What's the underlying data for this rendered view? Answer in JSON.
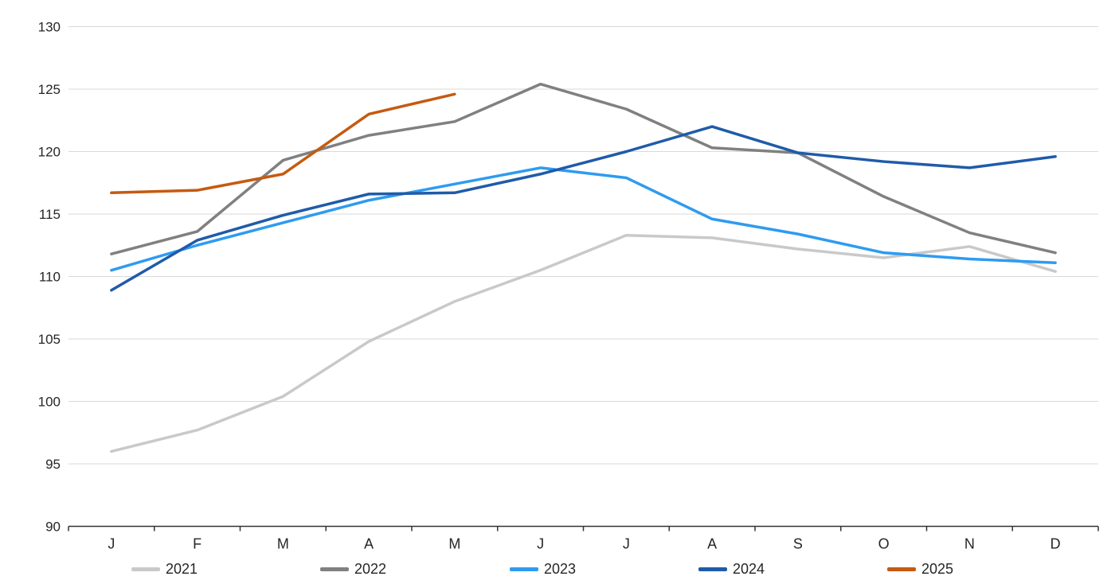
{
  "colors": {
    "background": "#ffffff",
    "gridline": "#d9d9d9",
    "axis": "#333333",
    "text": "#262626"
  },
  "chart_data": {
    "type": "line",
    "title": "",
    "xlabel": "",
    "ylabel": "",
    "categories": [
      "J",
      "F",
      "M",
      "A",
      "M",
      "J",
      "J",
      "A",
      "S",
      "O",
      "N",
      "D"
    ],
    "y_axis": {
      "min": 90,
      "max": 130,
      "tick_step": 5,
      "tick_labels": [
        "90",
        "95",
        "100",
        "105",
        "110",
        "115",
        "120",
        "125",
        "130"
      ]
    },
    "grid": true,
    "legend_position": "bottom",
    "series": [
      {
        "name": "2021",
        "color": "#c9c9c9",
        "values": [
          96.0,
          97.7,
          100.4,
          104.8,
          108.0,
          110.5,
          113.3,
          113.1,
          112.2,
          111.5,
          112.4,
          110.4
        ]
      },
      {
        "name": "2022",
        "color": "#808080",
        "values": [
          111.8,
          113.6,
          119.3,
          121.3,
          122.4,
          125.4,
          123.4,
          120.3,
          119.9,
          116.4,
          113.5,
          111.9
        ]
      },
      {
        "name": "2023",
        "color": "#2e9bf0",
        "values": [
          110.5,
          112.5,
          114.3,
          116.1,
          117.4,
          118.7,
          117.9,
          114.6,
          113.4,
          111.9,
          111.4,
          111.1
        ]
      },
      {
        "name": "2024",
        "color": "#1f5ba9",
        "values": [
          108.9,
          112.9,
          114.9,
          116.6,
          116.7,
          118.2,
          120.0,
          122.0,
          119.9,
          119.2,
          118.7,
          119.6
        ]
      },
      {
        "name": "2025",
        "color": "#c55a11",
        "values": [
          116.7,
          116.9,
          118.2,
          123.0,
          124.6
        ]
      }
    ]
  }
}
